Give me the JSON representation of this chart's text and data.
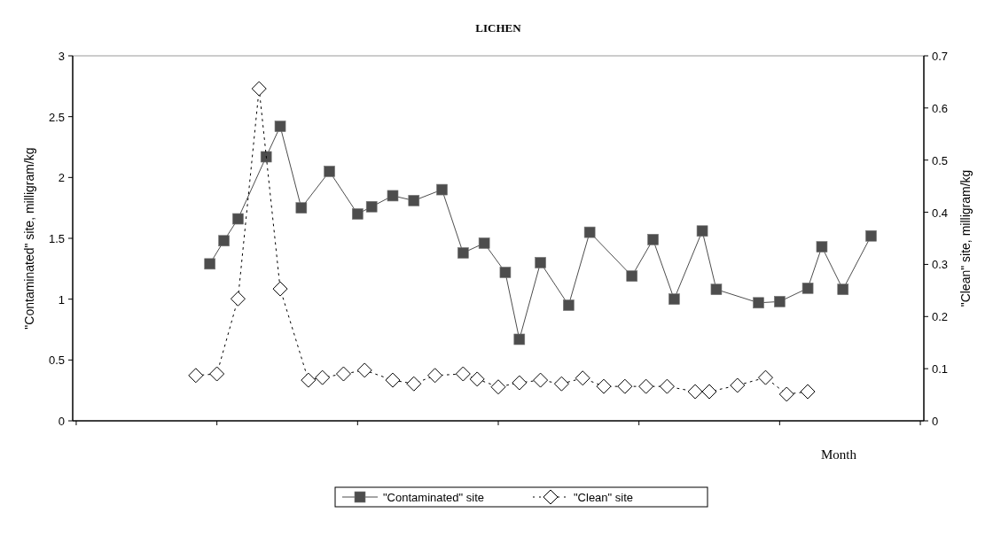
{
  "chart_data": {
    "type": "line",
    "title": "LICHEN",
    "xlabel": "Month",
    "ylabel": "\"Contaminated\" site, milligram/kg",
    "y2label": "\"Clean\" site, milligram/kg",
    "categories": [
      null,
      null,
      null,
      null,
      null,
      null,
      null,
      null,
      null,
      null,
      null,
      null,
      null,
      null,
      null,
      null,
      null,
      null,
      null,
      null,
      null,
      null,
      null,
      null,
      null,
      null,
      null,
      null,
      null,
      null,
      null,
      null,
      null,
      null,
      null,
      null,
      null,
      null,
      null,
      null,
      null,
      null,
      null,
      null,
      null,
      null,
      null,
      null,
      null,
      null,
      null,
      null,
      null,
      null,
      null,
      null,
      null,
      null,
      null,
      null,
      null,
      null,
      null,
      null,
      null,
      null,
      null,
      null,
      null,
      null,
      null,
      null,
      null,
      null,
      null,
      null,
      null,
      null,
      null,
      null,
      null,
      null,
      null,
      null,
      null,
      null,
      null,
      null,
      null,
      null,
      null,
      null,
      null,
      null,
      null,
      null,
      null,
      null,
      null,
      null,
      null,
      null,
      null,
      null,
      null,
      null,
      null,
      null,
      null,
      null,
      null,
      null,
      null,
      null,
      null,
      null,
      null,
      null,
      null,
      null,
      null
    ],
    "ylim": [
      0,
      3
    ],
    "yticks": [
      0,
      0.5,
      1,
      1.5,
      2,
      2.5,
      3
    ],
    "y2lim": [
      0,
      0.7
    ],
    "y2ticks": [
      0,
      0.1,
      0.2,
      0.3,
      0.4,
      0.5,
      0.6,
      0.7
    ],
    "grid": false,
    "legend": "bottom",
    "series": [
      {
        "name": "\"Contaminated\" site",
        "color": "#4d4d4d",
        "marker": "square",
        "line_style": "solid",
        "values": [
          null,
          null,
          null,
          null,
          null,
          null,
          null,
          null,
          null,
          null,
          null,
          null,
          null,
          null,
          null,
          null,
          null,
          null,
          null,
          1.29,
          null,
          1.48,
          null,
          1.66,
          null,
          null,
          null,
          2.17,
          null,
          2.42,
          null,
          null,
          1.75,
          null,
          null,
          null,
          2.05,
          null,
          null,
          null,
          1.7,
          null,
          1.76,
          null,
          null,
          1.85,
          null,
          null,
          1.81,
          null,
          null,
          null,
          1.9,
          null,
          null,
          1.38,
          null,
          null,
          1.46,
          null,
          null,
          1.22,
          null,
          0.67,
          null,
          null,
          1.3,
          null,
          null,
          null,
          0.95,
          null,
          null,
          1.55,
          null,
          null,
          null,
          null,
          null,
          1.19,
          null,
          null,
          1.49,
          null,
          null,
          1.0,
          null,
          null,
          null,
          1.56,
          null,
          1.08,
          null,
          null,
          null,
          null,
          null,
          0.97,
          null,
          null,
          0.98,
          null,
          null,
          null,
          1.09,
          null,
          1.43,
          null,
          null,
          1.08,
          null,
          null,
          null,
          1.52,
          null,
          null,
          null,
          null,
          null,
          null,
          null
        ]
      },
      {
        "name": "\"Clean\" site",
        "color": "#000000",
        "marker": "diamond",
        "line_style": "dotted",
        "axis": "y2",
        "values": [
          null,
          null,
          null,
          null,
          null,
          null,
          null,
          null,
          null,
          null,
          null,
          null,
          null,
          null,
          null,
          null,
          null,
          0.087,
          null,
          null,
          0.09,
          null,
          null,
          0.234,
          null,
          null,
          0.637,
          null,
          null,
          0.253,
          null,
          null,
          null,
          0.078,
          null,
          0.083,
          null,
          null,
          0.09,
          null,
          null,
          0.097,
          null,
          null,
          null,
          0.078,
          null,
          null,
          0.071,
          null,
          null,
          0.087,
          null,
          null,
          null,
          0.09,
          null,
          0.08,
          null,
          null,
          0.065,
          null,
          null,
          0.073,
          null,
          null,
          0.078,
          null,
          null,
          0.071,
          null,
          null,
          0.082,
          null,
          null,
          0.066,
          null,
          null,
          0.066,
          null,
          null,
          0.066,
          null,
          null,
          0.066,
          null,
          null,
          null,
          0.056,
          null,
          0.056,
          null,
          null,
          null,
          0.068,
          null,
          null,
          null,
          0.083,
          null,
          null,
          0.051,
          null,
          null,
          0.056,
          null,
          null,
          null,
          null,
          null,
          null,
          null,
          null,
          null,
          null,
          null,
          null,
          null,
          null,
          null,
          null
        ]
      }
    ]
  }
}
